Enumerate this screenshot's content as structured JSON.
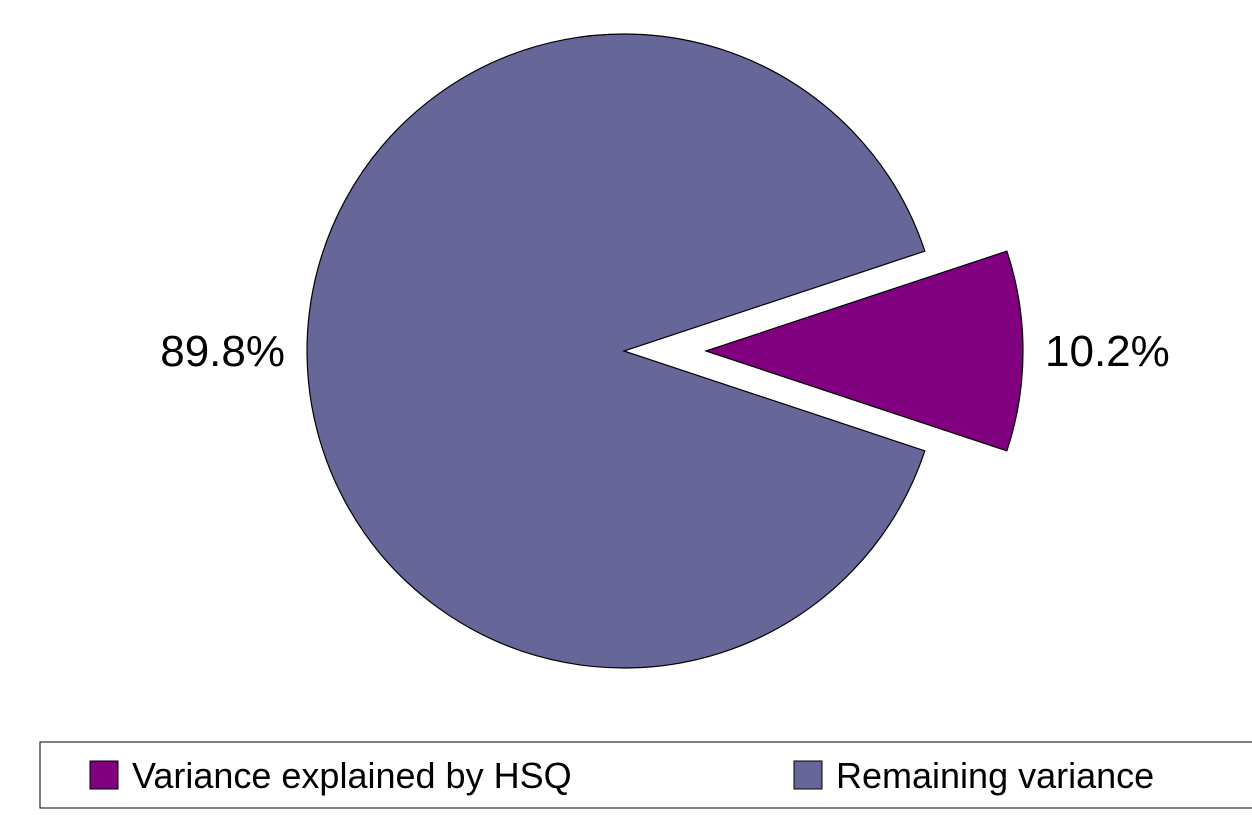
{
  "chart_data": {
    "type": "pie",
    "series": [
      {
        "name": "Variance explained by HSQ",
        "value": 10.2,
        "label": "10.2%",
        "color": "#800080",
        "exploded": true
      },
      {
        "name": "Remaining variance",
        "value": 89.8,
        "label": "89.8%",
        "color": "#666699",
        "exploded": false
      }
    ],
    "legend": {
      "position": "bottom"
    }
  }
}
